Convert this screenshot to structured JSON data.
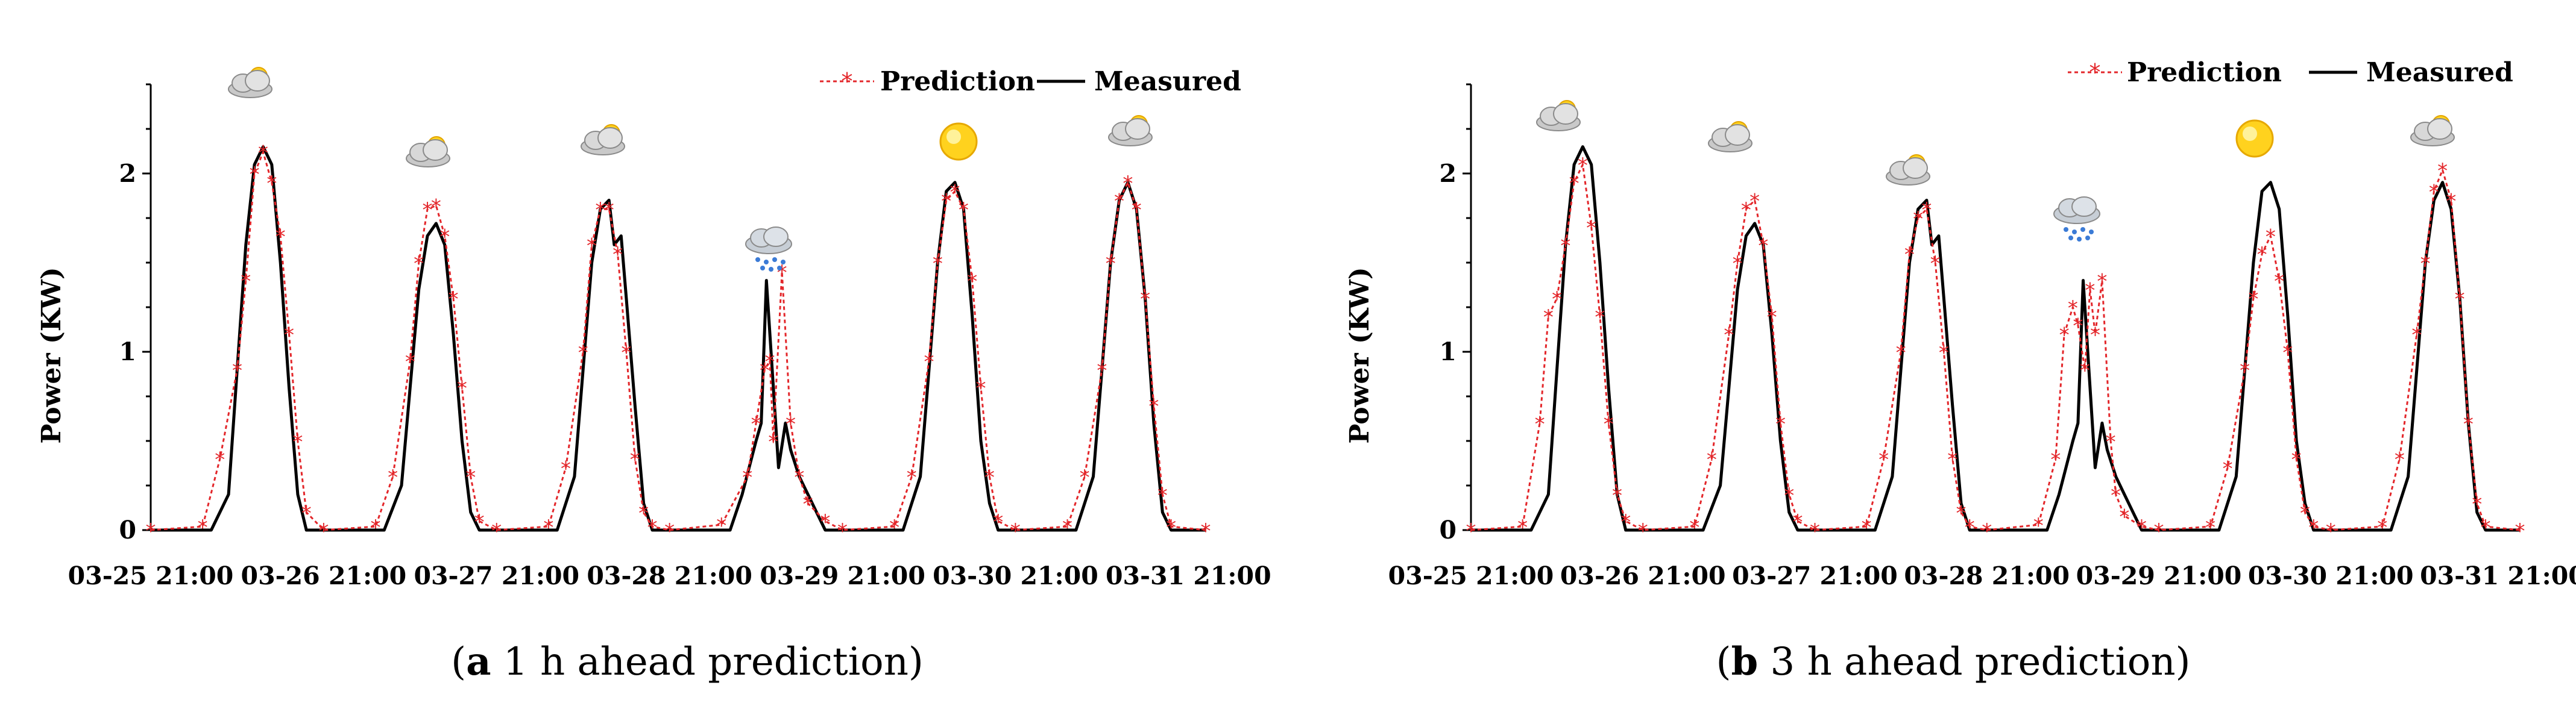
{
  "chart_data": [
    {
      "type": "line",
      "caption_letter": "a",
      "caption_text": " 1 h ahead prediction",
      "ylabel": "Power (KW)",
      "xlabel": "",
      "ylim": [
        0,
        2.5
      ],
      "xlim": [
        0,
        6.1
      ],
      "y_ticks": [
        "0",
        "1",
        "2"
      ],
      "x_tick_labels": [
        "03-25 21:00",
        "03-26 21:00",
        "03-27 21:00",
        "03-28 21:00",
        "03-29 21:00",
        "03-30 21:00",
        "03-31 21:00"
      ],
      "legend": [
        "Prediction",
        "Measured"
      ],
      "weather_icons": [
        "cloudy",
        "cloudy",
        "cloudy",
        "rainy",
        "sunny",
        "cloudy"
      ],
      "series": [
        {
          "name": "Measured",
          "color": "#000000",
          "x": [
            0,
            0.35,
            0.45,
            0.5,
            0.55,
            0.6,
            0.65,
            0.7,
            0.75,
            0.8,
            0.85,
            0.9,
            1.0,
            1.35,
            1.45,
            1.5,
            1.55,
            1.6,
            1.65,
            1.7,
            1.75,
            1.8,
            1.85,
            1.9,
            2.0,
            2.35,
            2.45,
            2.5,
            2.55,
            2.6,
            2.65,
            2.68,
            2.72,
            2.75,
            2.8,
            2.85,
            2.9,
            3.0,
            3.35,
            3.42,
            3.5,
            3.53,
            3.56,
            3.6,
            3.63,
            3.67,
            3.7,
            3.75,
            3.8,
            3.85,
            3.9,
            4.0,
            4.35,
            4.45,
            4.5,
            4.55,
            4.6,
            4.65,
            4.7,
            4.75,
            4.8,
            4.85,
            4.9,
            5.0,
            5.35,
            5.45,
            5.5,
            5.55,
            5.6,
            5.65,
            5.7,
            5.75,
            5.8,
            5.85,
            5.9,
            6.1
          ],
          "values": [
            0,
            0,
            0.2,
            0.9,
            1.6,
            2.05,
            2.15,
            2.05,
            1.5,
            0.8,
            0.2,
            0,
            0,
            0,
            0.25,
            0.8,
            1.35,
            1.65,
            1.72,
            1.6,
            1.1,
            0.5,
            0.1,
            0,
            0,
            0,
            0.3,
            0.9,
            1.5,
            1.8,
            1.85,
            1.6,
            1.65,
            1.3,
            0.7,
            0.15,
            0,
            0,
            0,
            0.2,
            0.5,
            0.6,
            1.4,
            0.8,
            0.35,
            0.6,
            0.45,
            0.3,
            0.2,
            0.1,
            0,
            0,
            0,
            0.3,
            0.9,
            1.5,
            1.9,
            1.95,
            1.8,
            1.2,
            0.5,
            0.15,
            0,
            0,
            0,
            0.3,
            0.9,
            1.5,
            1.85,
            1.95,
            1.8,
            1.3,
            0.6,
            0.1,
            0,
            0
          ]
        },
        {
          "name": "Prediction",
          "color": "#e3262a",
          "x": [
            0,
            0.3,
            0.4,
            0.5,
            0.55,
            0.6,
            0.65,
            0.7,
            0.75,
            0.8,
            0.85,
            0.9,
            1.0,
            1.3,
            1.4,
            1.5,
            1.55,
            1.6,
            1.65,
            1.7,
            1.75,
            1.8,
            1.85,
            1.9,
            2.0,
            2.3,
            2.4,
            2.5,
            2.55,
            2.6,
            2.65,
            2.7,
            2.75,
            2.8,
            2.85,
            2.9,
            3.0,
            3.3,
            3.45,
            3.5,
            3.55,
            3.58,
            3.6,
            3.65,
            3.7,
            3.75,
            3.8,
            3.9,
            4.0,
            4.3,
            4.4,
            4.5,
            4.55,
            4.6,
            4.65,
            4.7,
            4.75,
            4.8,
            4.85,
            4.9,
            5.0,
            5.3,
            5.4,
            5.5,
            5.55,
            5.6,
            5.65,
            5.7,
            5.75,
            5.8,
            5.85,
            5.9,
            6.1
          ],
          "values": [
            0,
            0.02,
            0.4,
            0.9,
            1.4,
            2.0,
            2.12,
            1.95,
            1.65,
            1.1,
            0.5,
            0.1,
            0,
            0.02,
            0.3,
            0.95,
            1.5,
            1.8,
            1.82,
            1.65,
            1.3,
            0.8,
            0.3,
            0.05,
            0,
            0.02,
            0.35,
            1.0,
            1.6,
            1.8,
            1.8,
            1.55,
            1.0,
            0.4,
            0.1,
            0.02,
            0,
            0.03,
            0.3,
            0.6,
            0.9,
            0.95,
            0.5,
            1.45,
            0.6,
            0.3,
            0.15,
            0.05,
            0,
            0.02,
            0.3,
            0.95,
            1.5,
            1.85,
            1.9,
            1.8,
            1.4,
            0.8,
            0.3,
            0.05,
            0,
            0.02,
            0.3,
            0.9,
            1.5,
            1.85,
            1.95,
            1.8,
            1.3,
            0.7,
            0.2,
            0.02,
            0
          ]
        }
      ]
    },
    {
      "type": "line",
      "caption_letter": "b",
      "caption_text": " 3 h ahead prediction",
      "ylabel": "Power (KW)",
      "xlabel": "",
      "ylim": [
        0,
        2.5
      ],
      "xlim": [
        0,
        6.1
      ],
      "y_ticks": [
        "0",
        "1",
        "2"
      ],
      "x_tick_labels": [
        "03-25 21:00",
        "03-26 21:00",
        "03-27 21:00",
        "03-28 21:00",
        "03-29 21:00",
        "03-30 21:00",
        "03-31 21:00"
      ],
      "legend": [
        "Prediction",
        "Measured"
      ],
      "weather_icons": [
        "cloudy",
        "cloudy",
        "cloudy",
        "rainy",
        "sunny",
        "cloudy"
      ],
      "series": [
        {
          "name": "Measured",
          "color": "#000000",
          "x": [
            0,
            0.35,
            0.45,
            0.5,
            0.55,
            0.6,
            0.65,
            0.7,
            0.75,
            0.8,
            0.85,
            0.9,
            1.0,
            1.35,
            1.45,
            1.5,
            1.55,
            1.6,
            1.65,
            1.7,
            1.75,
            1.8,
            1.85,
            1.9,
            2.0,
            2.35,
            2.45,
            2.5,
            2.55,
            2.6,
            2.65,
            2.68,
            2.72,
            2.75,
            2.8,
            2.85,
            2.9,
            3.0,
            3.35,
            3.42,
            3.5,
            3.53,
            3.56,
            3.6,
            3.63,
            3.67,
            3.7,
            3.75,
            3.8,
            3.85,
            3.9,
            4.0,
            4.35,
            4.45,
            4.5,
            4.55,
            4.6,
            4.65,
            4.7,
            4.75,
            4.8,
            4.85,
            4.9,
            5.0,
            5.35,
            5.45,
            5.5,
            5.55,
            5.6,
            5.65,
            5.7,
            5.75,
            5.8,
            5.85,
            5.9,
            6.1
          ],
          "values": [
            0,
            0,
            0.2,
            0.9,
            1.6,
            2.05,
            2.15,
            2.05,
            1.5,
            0.8,
            0.2,
            0,
            0,
            0,
            0.25,
            0.8,
            1.35,
            1.65,
            1.72,
            1.6,
            1.1,
            0.5,
            0.1,
            0,
            0,
            0,
            0.3,
            0.9,
            1.5,
            1.8,
            1.85,
            1.6,
            1.65,
            1.3,
            0.7,
            0.15,
            0,
            0,
            0,
            0.2,
            0.5,
            0.6,
            1.4,
            0.8,
            0.35,
            0.6,
            0.45,
            0.3,
            0.2,
            0.1,
            0,
            0,
            0,
            0.3,
            0.9,
            1.5,
            1.9,
            1.95,
            1.8,
            1.2,
            0.5,
            0.15,
            0,
            0,
            0,
            0.3,
            0.9,
            1.5,
            1.85,
            1.95,
            1.8,
            1.3,
            0.6,
            0.1,
            0,
            0
          ]
        },
        {
          "name": "Prediction",
          "color": "#e3262a",
          "x": [
            0,
            0.3,
            0.4,
            0.45,
            0.5,
            0.55,
            0.6,
            0.65,
            0.7,
            0.75,
            0.8,
            0.85,
            0.9,
            1.0,
            1.3,
            1.4,
            1.5,
            1.55,
            1.6,
            1.65,
            1.7,
            1.75,
            1.8,
            1.85,
            1.9,
            2.0,
            2.3,
            2.4,
            2.5,
            2.55,
            2.6,
            2.65,
            2.7,
            2.75,
            2.8,
            2.85,
            2.9,
            3.0,
            3.3,
            3.4,
            3.45,
            3.5,
            3.53,
            3.57,
            3.6,
            3.63,
            3.67,
            3.72,
            3.75,
            3.8,
            3.9,
            4.0,
            4.3,
            4.4,
            4.5,
            4.55,
            4.6,
            4.65,
            4.7,
            4.75,
            4.8,
            4.85,
            4.9,
            5.0,
            5.3,
            5.4,
            5.5,
            5.55,
            5.6,
            5.65,
            5.7,
            5.75,
            5.8,
            5.85,
            5.9,
            6.1
          ],
          "values": [
            0,
            0.02,
            0.6,
            1.2,
            1.3,
            1.6,
            1.95,
            2.05,
            1.7,
            1.2,
            0.6,
            0.2,
            0.05,
            0,
            0.02,
            0.4,
            1.1,
            1.5,
            1.8,
            1.85,
            1.6,
            1.2,
            0.6,
            0.2,
            0.05,
            0,
            0.02,
            0.4,
            1.0,
            1.55,
            1.75,
            1.8,
            1.5,
            1.0,
            0.4,
            0.1,
            0.02,
            0,
            0.03,
            0.4,
            1.1,
            1.25,
            1.15,
            0.9,
            1.35,
            1.1,
            1.4,
            0.5,
            0.2,
            0.08,
            0.02,
            0,
            0.02,
            0.35,
            0.9,
            1.3,
            1.55,
            1.65,
            1.4,
            1.0,
            0.4,
            0.1,
            0.02,
            0,
            0.02,
            0.4,
            1.1,
            1.5,
            1.9,
            2.02,
            1.85,
            1.3,
            0.6,
            0.15,
            0.02,
            0
          ]
        }
      ]
    }
  ]
}
